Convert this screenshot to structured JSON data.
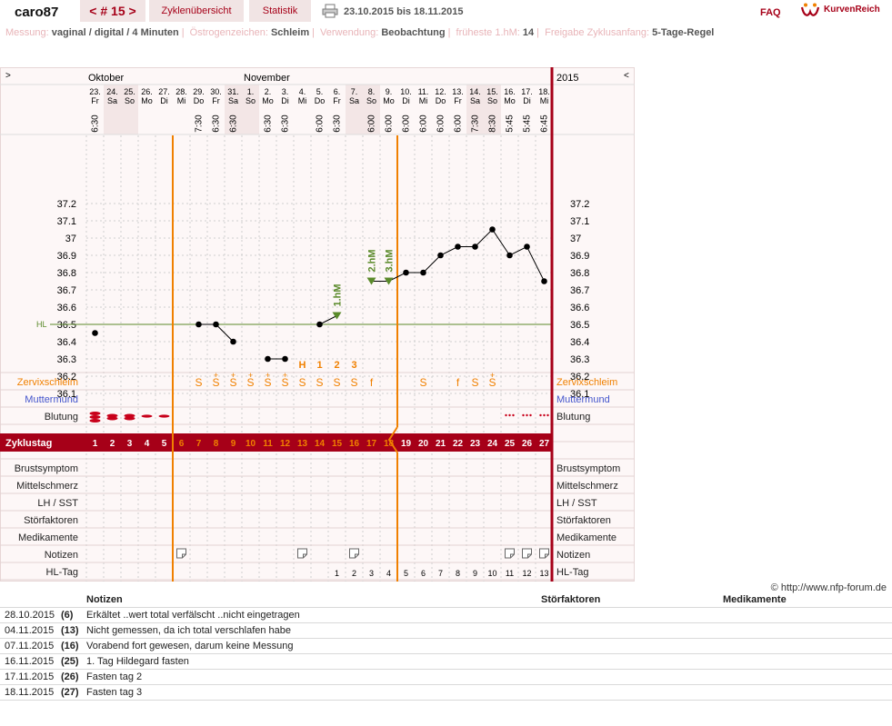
{
  "header": {
    "user": "caro87",
    "cycle_nav": "< # 15 >",
    "tabs": [
      "Zyklenübersicht",
      "Statistik"
    ],
    "date_range": "23.10.2015 bis 18.11.2015",
    "faq": "FAQ",
    "brand": "KurvenReich"
  },
  "info": {
    "items": [
      {
        "label": "Messung:",
        "value": "vaginal / digital / 4 Minuten"
      },
      {
        "label": "Östrogenzeichen:",
        "value": "Schleim"
      },
      {
        "label": "Verwendung:",
        "value": "Beobachtung"
      },
      {
        "label": "früheste 1.hM:",
        "value": "14"
      },
      {
        "label": "Freigabe Zyklusanfang:",
        "value": "5-Tage-Regel"
      }
    ]
  },
  "chart_data": {
    "type": "line",
    "year": "2015",
    "nav_prev": ">",
    "nav_next": "<",
    "months": [
      {
        "label": "Oktober",
        "start_index": 0
      },
      {
        "label": "November",
        "start_index": 9
      }
    ],
    "days": [
      "23.",
      "24.",
      "25.",
      "26.",
      "27.",
      "28.",
      "29.",
      "30.",
      "31.",
      "1.",
      "2.",
      "3.",
      "4.",
      "5.",
      "6.",
      "7.",
      "8.",
      "9.",
      "10.",
      "11.",
      "12.",
      "13.",
      "14.",
      "15.",
      "16.",
      "17.",
      "18."
    ],
    "weekdays": [
      "Fr",
      "Sa",
      "So",
      "Mo",
      "Di",
      "Mi",
      "Do",
      "Fr",
      "Sa",
      "So",
      "Mo",
      "Di",
      "Mi",
      "Do",
      "Fr",
      "Sa",
      "So",
      "Mo",
      "Di",
      "Mi",
      "Do",
      "Fr",
      "Sa",
      "So",
      "Mo",
      "Di",
      "Mi"
    ],
    "times": [
      "6:30",
      "",
      "",
      "",
      "",
      "",
      "7:30",
      "6:30",
      "6:30",
      "",
      "6:30",
      "6:30",
      "",
      "6:00",
      "6:30",
      "",
      "6:00",
      "6:00",
      "6:00",
      "6:00",
      "6:00",
      "6:00",
      "7:30",
      "8:30",
      "5:45",
      "5:45",
      "6:45"
    ],
    "weekend_days": [
      1,
      2,
      8,
      9,
      15,
      16,
      22,
      23
    ],
    "y_ticks": [
      "37.2",
      "37.1",
      "37",
      "36.9",
      "36.8",
      "36.7",
      "36.6",
      "36.5",
      "36.4",
      "36.3",
      "36.2",
      "36.1"
    ],
    "ylim": [
      36.0,
      37.3
    ],
    "coverline": {
      "value": 36.5,
      "label": "HL"
    },
    "temperatures": [
      36.45,
      null,
      null,
      null,
      null,
      null,
      36.5,
      36.5,
      36.4,
      null,
      36.3,
      36.3,
      null,
      36.5,
      36.55,
      null,
      36.75,
      36.75,
      36.8,
      36.8,
      36.9,
      36.95,
      36.95,
      37.05,
      36.9,
      36.95,
      36.75
    ],
    "segments": [
      [
        6,
        7,
        8
      ],
      [
        10,
        11
      ],
      [
        13,
        14
      ],
      [
        16,
        17,
        18,
        19,
        20,
        21,
        22,
        23,
        24,
        25,
        26
      ]
    ],
    "high_markers": [
      {
        "index": 14,
        "label": "1.hM"
      },
      {
        "index": 16,
        "label": "2.hM"
      },
      {
        "index": 17,
        "label": "3.hM"
      }
    ],
    "mucus_peak": [
      "",
      "",
      "",
      "",
      "",
      "",
      "",
      "",
      "",
      "",
      "",
      "",
      "H",
      "1",
      "2",
      "3",
      "",
      "",
      "",
      "",
      "",
      "",
      "",
      "",
      "",
      "",
      ""
    ],
    "cervical_mucus": [
      "",
      "",
      "",
      "",
      "",
      "",
      "S",
      "S",
      "S",
      "S",
      "S",
      "S",
      "S",
      "S",
      "S",
      "S",
      "f",
      "",
      "",
      "S",
      "",
      "f",
      "S",
      "S",
      "",
      "",
      ""
    ],
    "mucus_plus": [
      7,
      8,
      9,
      10,
      11,
      23
    ],
    "bleeding": [
      "heavy",
      "medium",
      "medium",
      "light",
      "light",
      "",
      "",
      "",
      "",
      "",
      "",
      "",
      "",
      "",
      "",
      "",
      "",
      "",
      "",
      "",
      "",
      "",
      "",
      "",
      "spot",
      "spot",
      "spot"
    ],
    "cycle_days": [
      "1",
      "2",
      "3",
      "4",
      "5",
      "6",
      "7",
      "8",
      "9",
      "10",
      "11",
      "12",
      "13",
      "14",
      "15",
      "16",
      "17",
      "18",
      "19",
      "20",
      "21",
      "22",
      "23",
      "24",
      "25",
      "26",
      "27"
    ],
    "fertile_cycle_days": [
      5,
      6,
      7,
      8,
      9,
      10,
      11,
      12,
      13,
      14,
      15,
      16,
      17
    ],
    "notes_days": [
      5,
      12,
      15,
      24,
      25,
      26
    ],
    "hl_tag": [
      "",
      "",
      "",
      "",
      "",
      "",
      "",
      "",
      "",
      "",
      "",
      "",
      "",
      "",
      "1",
      "2",
      "3",
      "4",
      "5",
      "6",
      "7",
      "8",
      "9",
      "10",
      "11",
      "12",
      "13"
    ],
    "vlines": [
      5,
      17
    ],
    "rows_left": [
      "Zervixschleim",
      "Muttermund",
      "Blutung",
      "Zyklustag",
      "Brustsymptom",
      "Mittelschmerz",
      "LH / SST",
      "Störfaktoren",
      "Medikamente",
      "Notizen",
      "HL-Tag"
    ],
    "rows_right": [
      "Zervixschleim",
      "Muttermund",
      "Blutung",
      "",
      "Brustsymptom",
      "Mittelschmerz",
      "LH / SST",
      "Störfaktoren",
      "Medikamente",
      "Notizen",
      "HL-Tag"
    ]
  },
  "copyright": "© http://www.nfp-forum.de",
  "notes_table": {
    "headers": {
      "notes": "Notizen",
      "factors": "Störfaktoren",
      "meds": "Medikamente"
    },
    "rows": [
      {
        "date": "28.10.2015",
        "day": "(6)",
        "note": "Erkältet ..wert total verfälscht ..nicht eingetragen"
      },
      {
        "date": "04.11.2015",
        "day": "(13)",
        "note": "Nicht gemessen, da ich total verschlafen habe"
      },
      {
        "date": "07.11.2015",
        "day": "(16)",
        "note": "Vorabend fort gewesen, darum keine Messung"
      },
      {
        "date": "16.11.2015",
        "day": "(25)",
        "note": "1. Tag Hildegard fasten"
      },
      {
        "date": "17.11.2015",
        "day": "(26)",
        "note": "Fasten tag 2"
      },
      {
        "date": "18.11.2015",
        "day": "(27)",
        "note": "Fasten tag 3"
      }
    ]
  },
  "colors": {
    "brand": "#a60018",
    "orange": "#f08000",
    "green": "#5a8a2a",
    "blue": "#4455cc",
    "grid": "#bbbbbb",
    "weekend": "#f3e6e6"
  }
}
